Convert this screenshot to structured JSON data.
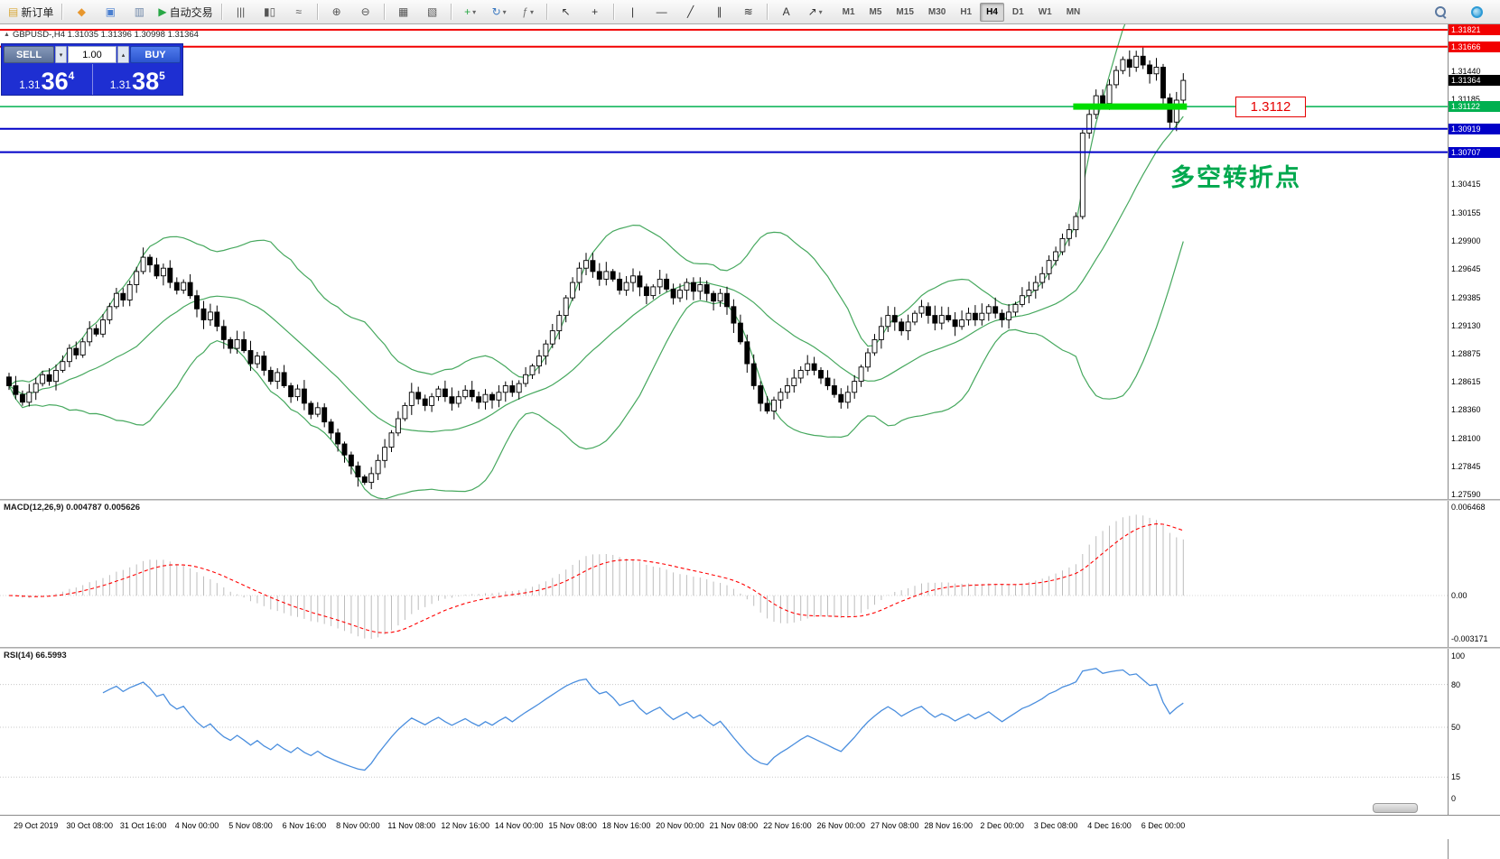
{
  "toolbar": {
    "groups": [
      {
        "items": [
          {
            "name": "new-order",
            "glyph": "▤",
            "color": "#d8a93a",
            "label": "新订单"
          }
        ]
      },
      {
        "items": [
          {
            "name": "mql5-community",
            "glyph": "◆",
            "color": "#e8972e"
          },
          {
            "name": "chart-window",
            "glyph": "▣",
            "color": "#4a7fd0"
          },
          {
            "name": "profiles",
            "glyph": "▥",
            "color": "#6f87a8"
          },
          {
            "name": "auto-trading",
            "glyph": "▶",
            "color": "#28a745",
            "label": "自动交易"
          }
        ]
      },
      {
        "items": [
          {
            "name": "bar-chart-type",
            "glyph": "|||",
            "color": "#555555"
          },
          {
            "name": "candlestick-chart-type",
            "glyph": "▮▯",
            "color": "#555555"
          },
          {
            "name": "line-chart-type",
            "glyph": "≈",
            "color": "#555555"
          }
        ]
      },
      {
        "items": [
          {
            "name": "zoom-in",
            "glyph": "⊕",
            "color": "#555555"
          },
          {
            "name": "zoom-out",
            "glyph": "⊖",
            "color": "#555555"
          }
        ]
      },
      {
        "items": [
          {
            "name": "tile-windows",
            "glyph": "▦",
            "color": "#555555"
          },
          {
            "name": "arrange-windows",
            "glyph": "▧",
            "color": "#555555"
          }
        ]
      },
      {
        "items": [
          {
            "name": "new-chart",
            "glyph": "+",
            "color": "#28a745",
            "dropdown": true
          },
          {
            "name": "refresh",
            "glyph": "↻",
            "color": "#3a78c0",
            "dropdown": true
          },
          {
            "name": "indicators",
            "glyph": "ƒ",
            "color": "#777777",
            "dropdown": true
          }
        ]
      },
      {
        "items": [
          {
            "name": "cursor",
            "glyph": "↖",
            "color": "#333333"
          },
          {
            "name": "crosshair",
            "glyph": "+",
            "color": "#333333"
          }
        ]
      },
      {
        "items": [
          {
            "name": "vertical-line",
            "glyph": "|",
            "color": "#333333"
          },
          {
            "name": "horizontal-line",
            "glyph": "—",
            "color": "#333333"
          },
          {
            "name": "trendline",
            "glyph": "╱",
            "color": "#333333"
          },
          {
            "name": "equidistant-channel",
            "glyph": "∥",
            "color": "#333333"
          },
          {
            "name": "fibonacci",
            "glyph": "≋",
            "color": "#333333"
          }
        ]
      },
      {
        "items": [
          {
            "name": "text-label",
            "glyph": "A",
            "color": "#333333"
          },
          {
            "name": "arrow-object",
            "glyph": "↗",
            "color": "#333333",
            "dropdown": true
          }
        ]
      }
    ],
    "timeframes": [
      "M1",
      "M5",
      "M15",
      "M30",
      "H1",
      "H4",
      "D1",
      "W1",
      "MN"
    ],
    "active_timeframe": "H4"
  },
  "icons": {
    "spinner_up": "▴",
    "spinner_down": "▾",
    "chart_marker": "▲",
    "dropdown": "▾"
  },
  "chart": {
    "title": "GBPUSD-,H4  1.31035 1.31396 1.30998 1.31364",
    "annotation": "多空转折点",
    "level_label": "1.3112"
  },
  "trade_panel": {
    "sell_label": "SELL",
    "buy_label": "BUY",
    "volume": "1.00",
    "sell_price": {
      "base": "1.31",
      "big": "36",
      "sup": "4"
    },
    "buy_price": {
      "base": "1.31",
      "big": "38",
      "sup": "5"
    }
  },
  "price_axis": {
    "plain": [
      1.3144,
      1.31185,
      1.30415,
      1.30155,
      1.299,
      1.29645,
      1.29385,
      1.2913,
      1.28875,
      1.28615,
      1.2836,
      1.281,
      1.27845,
      1.2759
    ],
    "badges": [
      {
        "text": "1.31821",
        "color": "#f20000",
        "price": 1.31821
      },
      {
        "text": "1.31666",
        "color": "#f20000",
        "price": 1.31666
      },
      {
        "text": "1.31364",
        "color": "#000000",
        "price": 1.31364
      },
      {
        "text": "1.31122",
        "color": "#00b050",
        "price": 1.31122
      },
      {
        "text": "1.30919",
        "color": "#0000c8",
        "price": 1.30919
      },
      {
        "text": "1.30707",
        "color": "#0000c8",
        "price": 1.30707
      }
    ]
  },
  "macd_panel": {
    "label": "MACD(12,26,9) 0.004787 0.005626",
    "axis": [
      "0.006468",
      "0.00",
      "-0.003171"
    ]
  },
  "rsi_panel": {
    "label": "RSI(14) 66.5993",
    "axis": [
      "100",
      "80",
      "50",
      "15",
      "0"
    ]
  },
  "time_axis": [
    "29 Oct 2019",
    "30 Oct 08:00",
    "31 Oct 16:00",
    "4 Nov 00:00",
    "5 Nov 08:00",
    "6 Nov 16:00",
    "8 Nov 00:00",
    "11 Nov 08:00",
    "12 Nov 16:00",
    "14 Nov 00:00",
    "15 Nov 08:00",
    "18 Nov 16:00",
    "20 Nov 00:00",
    "21 Nov 08:00",
    "22 Nov 16:00",
    "26 Nov 00:00",
    "27 Nov 08:00",
    "28 Nov 16:00",
    "2 Dec 00:00",
    "3 Dec 08:00",
    "4 Dec 16:00",
    "6 Dec 00:00"
  ],
  "colors": {
    "bollinger": "#46a85e",
    "rsi_line": "#4a8ede",
    "macd_hist": "#bdbdbd",
    "macd_signal": "#ff0000",
    "level_red": "#f20000",
    "level_green": "#00b050",
    "level_blue": "#0000c8",
    "highlight_green": "#00dd00",
    "up_candle": "#ffffff",
    "down_candle": "#000000"
  },
  "chart_data": {
    "type": "candlestick",
    "symbol": "GBPUSD-",
    "period": "H4",
    "current_bar": {
      "open": 1.31035,
      "high": 1.31396,
      "low": 1.30998,
      "close": 1.31364
    },
    "ylim": [
      1.27549,
      1.3187
    ],
    "closes": [
      1.2858,
      1.285,
      1.2843,
      1.2852,
      1.286,
      1.2868,
      1.2862,
      1.2872,
      1.288,
      1.2892,
      1.2886,
      1.2898,
      1.291,
      1.2905,
      1.2918,
      1.293,
      1.2942,
      1.2936,
      1.295,
      1.2962,
      1.2975,
      1.2968,
      1.2958,
      1.2965,
      1.2952,
      1.2945,
      1.2952,
      1.294,
      1.2928,
      1.2918,
      1.2925,
      1.2912,
      1.29,
      1.2892,
      1.29,
      1.289,
      1.2878,
      1.2885,
      1.2872,
      1.2862,
      1.287,
      1.2858,
      1.2848,
      1.2855,
      1.2842,
      1.2832,
      1.2838,
      1.2825,
      1.2815,
      1.2805,
      1.2795,
      1.2785,
      1.2775,
      1.277,
      1.2778,
      1.279,
      1.2802,
      1.2815,
      1.2828,
      1.284,
      1.2852,
      1.2846,
      1.284,
      1.2848,
      1.2855,
      1.2848,
      1.2842,
      1.2848,
      1.2854,
      1.2848,
      1.2843,
      1.285,
      1.2845,
      1.2852,
      1.2858,
      1.2852,
      1.286,
      1.2868,
      1.2876,
      1.2885,
      1.2896,
      1.2908,
      1.2922,
      1.2938,
      1.2952,
      1.2965,
      1.2972,
      1.2962,
      1.2955,
      1.2962,
      1.2955,
      1.2945,
      1.2952,
      1.2958,
      1.2948,
      1.294,
      1.2948,
      1.2955,
      1.2946,
      1.2938,
      1.2945,
      1.2952,
      1.2944,
      1.295,
      1.2942,
      1.2935,
      1.2942,
      1.293,
      1.2915,
      1.2898,
      1.2878,
      1.2858,
      1.2842,
      1.2835,
      1.2845,
      1.2852,
      1.2858,
      1.2865,
      1.2872,
      1.2878,
      1.2872,
      1.2865,
      1.2858,
      1.285,
      1.2843,
      1.2852,
      1.2862,
      1.2875,
      1.2888,
      1.29,
      1.2912,
      1.2922,
      1.2916,
      1.2908,
      1.2916,
      1.2924,
      1.293,
      1.2922,
      1.2915,
      1.2922,
      1.2918,
      1.2912,
      1.2918,
      1.2924,
      1.2918,
      1.2924,
      1.293,
      1.2924,
      1.2918,
      1.2925,
      1.2932,
      1.294,
      1.2945,
      1.2952,
      1.296,
      1.2972,
      1.298,
      1.2992,
      1.3,
      1.3012,
      1.3088,
      1.3105,
      1.3122,
      1.3115,
      1.3132,
      1.3145,
      1.3155,
      1.3148,
      1.3158,
      1.315,
      1.3142,
      1.3148,
      1.312,
      1.3098,
      1.3118,
      1.3136
    ],
    "levels": {
      "red": [
        1.31821,
        1.31666
      ],
      "green": 1.31122,
      "blue": [
        1.30919,
        1.30707
      ]
    },
    "highlight_zone": {
      "price": 1.31122,
      "bar_start": 159,
      "bar_end": 175
    },
    "indicators": {
      "bollinger": {
        "period": 20,
        "deviation": 2
      },
      "macd": {
        "fast": 12,
        "slow": 26,
        "signal": 9,
        "main_value": 0.004787,
        "signal_value": 0.005626
      },
      "rsi": {
        "period": 14,
        "value": 66.5993,
        "levels": [
          80,
          50,
          15
        ]
      }
    }
  }
}
